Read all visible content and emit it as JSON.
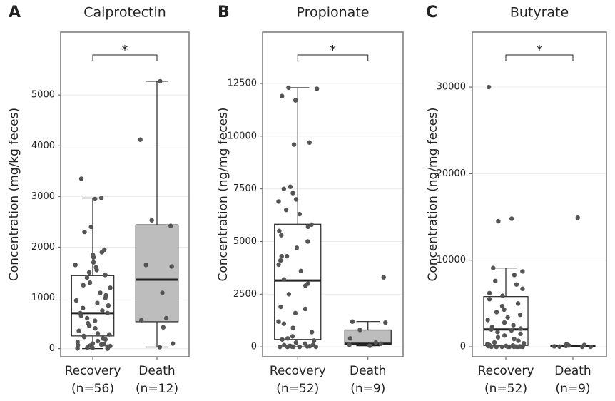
{
  "chart_data": [
    {
      "type": "box",
      "panel": "A",
      "title": "Calprotectin",
      "ylabel": "Concentration (mg/kg feces)",
      "annotation": "*",
      "categories": [
        "Recovery",
        "Death"
      ],
      "category_notes": [
        "(n=56)",
        "(n=12)"
      ],
      "fills": [
        "#ffffff",
        "#bdbdbd"
      ],
      "boxes": [
        {
          "min": 0,
          "q1": 250,
          "median": 700,
          "q3": 1440,
          "max": 2970
        },
        {
          "min": 30,
          "q1": 530,
          "median": 1360,
          "q3": 2440,
          "max": 5270
        }
      ],
      "points": [
        [
          3350,
          2970,
          2950,
          2400,
          2300,
          1950,
          1900,
          1850,
          1800,
          1700,
          1650,
          1600,
          1550,
          1500,
          1450,
          1400,
          1300,
          1250,
          1200,
          1100,
          1050,
          1000,
          950,
          900,
          850,
          800,
          750,
          700,
          700,
          650,
          600,
          550,
          500,
          450,
          400,
          350,
          300,
          280,
          250,
          230,
          200,
          180,
          150,
          130,
          100,
          90,
          80,
          70,
          60,
          50,
          40,
          30,
          20,
          10,
          5,
          0
        ],
        [
          5270,
          4120,
          2530,
          2420,
          1650,
          1620,
          1100,
          600,
          560,
          420,
          100,
          30
        ]
      ],
      "ylim": [
        -160,
        6240
      ],
      "yticks": [
        0,
        1000,
        2000,
        3000,
        4000,
        5000
      ],
      "grid": true
    },
    {
      "type": "box",
      "panel": "B",
      "title": "Propionate",
      "ylabel": "Concentration (ng/mg feces)",
      "annotation": "*",
      "categories": [
        "Recovery",
        "Death"
      ],
      "category_notes": [
        "(n=52)",
        "(n=9)"
      ],
      "fills": [
        "#ffffff",
        "#bdbdbd"
      ],
      "boxes": [
        {
          "min": 0,
          "q1": 350,
          "median": 3150,
          "q3": 5820,
          "max": 12300
        },
        {
          "min": 50,
          "q1": 110,
          "median": 150,
          "q3": 800,
          "max": 1200
        }
      ],
      "points": [
        [
          12300,
          12250,
          11900,
          11700,
          9700,
          9600,
          7600,
          7500,
          7300,
          7000,
          6900,
          6500,
          6300,
          5800,
          5700,
          5500,
          5300,
          5000,
          4700,
          4300,
          4300,
          4100,
          3900,
          3600,
          3200,
          3000,
          2900,
          2500,
          1900,
          1800,
          1600,
          1200,
          1100,
          900,
          700,
          500,
          400,
          350,
          300,
          200,
          150,
          100,
          80,
          50,
          30,
          20,
          10,
          5,
          0,
          0,
          0,
          0
        ],
        [
          3300,
          1200,
          1150,
          800,
          400,
          200,
          150,
          100,
          50
        ]
      ],
      "ylim": [
        -470,
        14940
      ],
      "yticks": [
        0,
        2500,
        5000,
        7500,
        10000,
        12500
      ],
      "grid": true
    },
    {
      "type": "box",
      "panel": "C",
      "title": "Butyrate",
      "ylabel": "Concentration (ng/mg feces)",
      "annotation": "*",
      "categories": [
        "Recovery",
        "Death"
      ],
      "category_notes": [
        "(n=52)",
        "(n=9)"
      ],
      "fills": [
        "#ffffff",
        "#bdbdbd"
      ],
      "boxes": [
        {
          "min": 0,
          "q1": 150,
          "median": 2000,
          "q3": 5800,
          "max": 9100
        },
        {
          "min": 0,
          "q1": 0,
          "median": 50,
          "q3": 100,
          "max": 200
        }
      ],
      "points": [
        [
          30000,
          14800,
          14500,
          9100,
          8700,
          8300,
          7600,
          7200,
          6700,
          6200,
          5900,
          5500,
          5000,
          4700,
          4300,
          4000,
          3700,
          3400,
          3100,
          2800,
          2500,
          2300,
          2100,
          2000,
          1900,
          1700,
          1500,
          1300,
          1100,
          900,
          700,
          500,
          400,
          300,
          200,
          150,
          100,
          80,
          60,
          40,
          30,
          20,
          10,
          5,
          0,
          0,
          0,
          0,
          0,
          0,
          0,
          0
        ],
        [
          14900,
          300,
          200,
          150,
          100,
          50,
          20,
          0,
          0
        ]
      ],
      "ylim": [
        -1150,
        36350
      ],
      "yticks": [
        0,
        10000,
        20000,
        30000
      ],
      "grid": true
    }
  ]
}
